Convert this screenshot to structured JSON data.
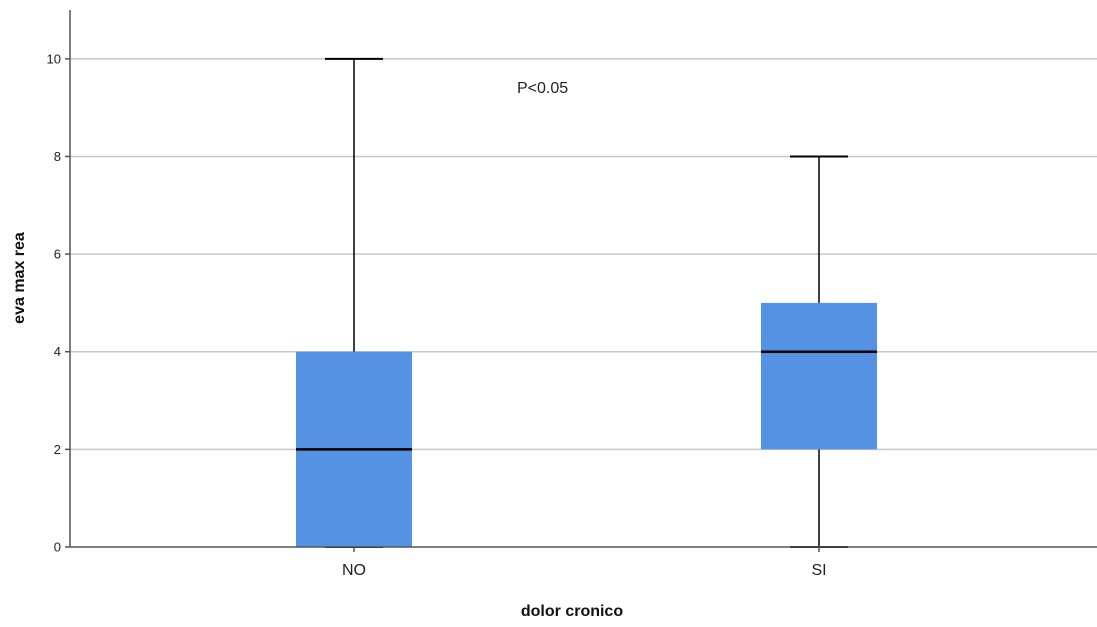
{
  "chart_data": {
    "type": "box",
    "categories": [
      "NO",
      "SI"
    ],
    "boxes": [
      {
        "category": "NO",
        "min": 0,
        "q1": 0,
        "median": 2,
        "q3": 4,
        "max": 10
      },
      {
        "category": "SI",
        "min": 0,
        "q1": 2,
        "median": 4,
        "q3": 5,
        "max": 8
      }
    ],
    "xlabel": "dolor cronico",
    "ylabel": "eva max rea",
    "ylim": [
      0,
      11
    ],
    "yticks": [
      "0",
      "2",
      "4",
      "6",
      "8",
      "10"
    ],
    "annotation": "P<0.05",
    "grid": true,
    "colors": {
      "box_fill": "#5592e4",
      "gridline": "#c8c8c8",
      "axis": "#555555"
    }
  }
}
